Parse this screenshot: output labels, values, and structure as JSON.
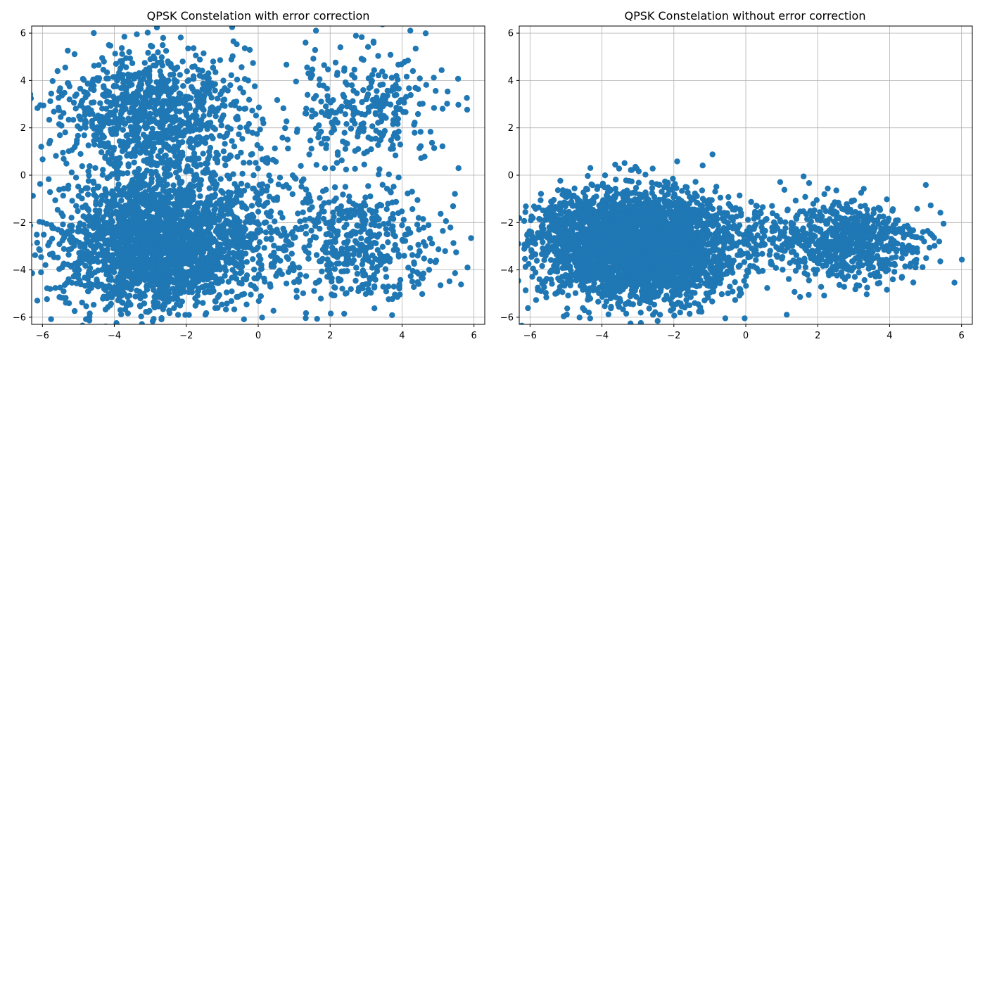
{
  "figure": {
    "background": "#ffffff"
  },
  "chart_data": [
    {
      "type": "scatter",
      "title": "QPSK Constelation with error correction",
      "xlabel": "",
      "ylabel": "",
      "xlim": [
        -6.3,
        6.3
      ],
      "ylim": [
        -6.3,
        6.3
      ],
      "xticks": [
        -6,
        -4,
        -2,
        0,
        2,
        4,
        6
      ],
      "yticks": [
        -6,
        -4,
        -2,
        0,
        2,
        4,
        6
      ],
      "xtick_labels": [
        "−6",
        "−4",
        "−2",
        "0",
        "2",
        "4",
        "6"
      ],
      "ytick_labels": [
        "−6",
        "−4",
        "−2",
        "0",
        "2",
        "4",
        "6"
      ],
      "grid": true,
      "marker_color": "#1f77b4",
      "clusters": [
        {
          "center": [
            -2.8,
            -3.0
          ],
          "std": [
            1.35,
            1.35
          ],
          "count": 2200,
          "opacity": 1.0
        },
        {
          "center": [
            -3.0,
            2.8
          ],
          "std": [
            1.2,
            1.25
          ],
          "count": 900,
          "opacity": 1.0
        },
        {
          "center": [
            -2.0,
            -0.5
          ],
          "std": [
            1.6,
            1.4
          ],
          "count": 400,
          "opacity": 1.0
        },
        {
          "center": [
            3.0,
            -2.8
          ],
          "std": [
            1.1,
            1.2
          ],
          "count": 380,
          "opacity": 1.0
        },
        {
          "center": [
            3.0,
            2.8
          ],
          "std": [
            1.1,
            1.2
          ],
          "count": 300,
          "opacity": 1.0
        },
        {
          "center": [
            0.5,
            -2.5
          ],
          "std": [
            1.5,
            1.4
          ],
          "count": 180,
          "opacity": 1.0
        }
      ]
    },
    {
      "type": "scatter",
      "title": "QPSK Constelation without error correction",
      "xlabel": "",
      "ylabel": "",
      "xlim": [
        -6.3,
        6.3
      ],
      "ylim": [
        -6.3,
        6.3
      ],
      "xticks": [
        -6,
        -4,
        -2,
        0,
        2,
        4,
        6
      ],
      "yticks": [
        -6,
        -4,
        -2,
        0,
        2,
        4,
        6
      ],
      "xtick_labels": [
        "−6",
        "−4",
        "−2",
        "0",
        "2",
        "4",
        "6"
      ],
      "ytick_labels": [
        "−6",
        "−4",
        "−2",
        "0",
        "2",
        "4",
        "6"
      ],
      "grid": true,
      "marker_color": "#1f77b4",
      "clusters": [
        {
          "center": [
            -2.8,
            -3.0
          ],
          "std": [
            1.25,
            1.1
          ],
          "count": 3000,
          "opacity": 1.0
        },
        {
          "center": [
            -4.6,
            -2.8
          ],
          "std": [
            0.9,
            1.1
          ],
          "count": 500,
          "opacity": 1.0
        },
        {
          "center": [
            2.9,
            -2.8
          ],
          "std": [
            1.0,
            0.8
          ],
          "count": 650,
          "opacity": 1.0
        },
        {
          "center": [
            1.0,
            -2.6
          ],
          "std": [
            0.9,
            0.9
          ],
          "count": 120,
          "opacity": 1.0
        }
      ]
    }
  ]
}
